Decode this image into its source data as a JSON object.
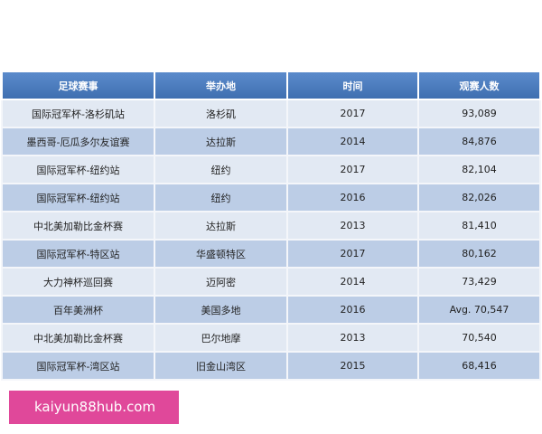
{
  "table": {
    "headers": [
      "足球赛事",
      "举办地",
      "时间",
      "观赛人数"
    ],
    "rows": [
      [
        "国际冠军杯-洛杉矶站",
        "洛杉矶",
        "2017",
        "93,089"
      ],
      [
        "墨西哥-厄瓜多尔友谊赛",
        "达拉斯",
        "2014",
        "84,876"
      ],
      [
        "国际冠军杯-纽约站",
        "纽约",
        "2017",
        "82,104"
      ],
      [
        "国际冠军杯-纽约站",
        "纽约",
        "2016",
        "82,026"
      ],
      [
        "中北美加勒比金杯赛",
        "达拉斯",
        "2013",
        "81,410"
      ],
      [
        "国际冠军杯-特区站",
        "华盛顿特区",
        "2017",
        "80,162"
      ],
      [
        "大力神杯巡回赛",
        "迈阿密",
        "2014",
        "73,429"
      ],
      [
        "百年美洲杯",
        "美国多地",
        "2016",
        "Avg. 70,547"
      ],
      [
        "中北美加勒比金杯赛",
        "巴尔地摩",
        "2013",
        "70,540"
      ],
      [
        "国际冠军杯-湾区站",
        "旧金山湾区",
        "2015",
        "68,416"
      ]
    ]
  },
  "banner": {
    "text": "kaiyun88hub.com",
    "color": "#e0489a"
  }
}
